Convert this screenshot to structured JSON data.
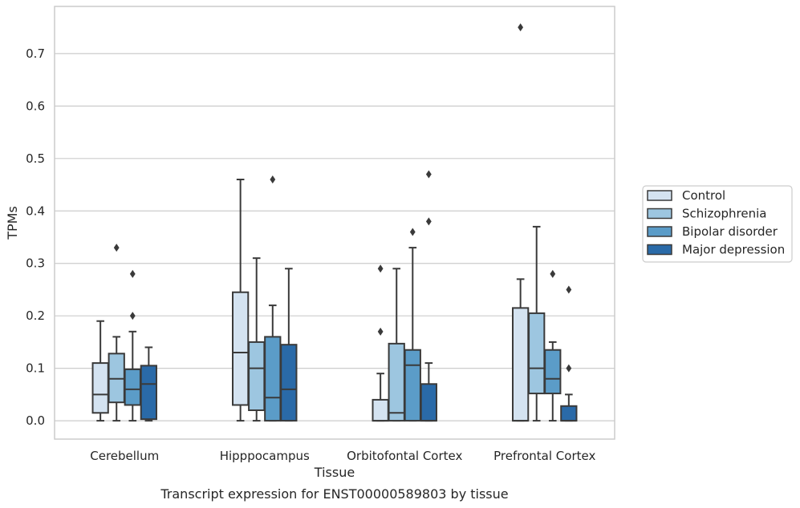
{
  "chart_data": {
    "type": "box",
    "xlabel": "Tissue",
    "ylabel": "TPMs",
    "caption": "Transcript expression for ENST00000589803 by tissue",
    "ylim": [
      -0.035,
      0.79
    ],
    "yticks": [
      0.0,
      0.1,
      0.2,
      0.3,
      0.4,
      0.5,
      0.6,
      0.7
    ],
    "ytick_labels": [
      "0.0",
      "0.1",
      "0.2",
      "0.3",
      "0.4",
      "0.5",
      "0.6",
      "0.7"
    ],
    "grid": "horizontal",
    "legend_position": "right",
    "categories": [
      "Cerebellum",
      "Hipppocampus",
      "Orbitofontal Cortex",
      "Prefrontal Cortex"
    ],
    "series": [
      {
        "name": "Control",
        "color": "#d4e3f1",
        "boxes": [
          {
            "whislo": 0.0,
            "q1": 0.015,
            "med": 0.05,
            "q3": 0.11,
            "whishi": 0.19,
            "fliers": []
          },
          {
            "whislo": 0.0,
            "q1": 0.03,
            "med": 0.13,
            "q3": 0.245,
            "whishi": 0.46,
            "fliers": []
          },
          {
            "whislo": 0.0,
            "q1": 0.0,
            "med": 0.0,
            "q3": 0.04,
            "whishi": 0.09,
            "fliers": [
              0.17,
              0.29
            ]
          },
          {
            "whislo": 0.0,
            "q1": 0.0,
            "med": 0.0,
            "q3": 0.215,
            "whishi": 0.27,
            "fliers": [
              0.75
            ]
          }
        ]
      },
      {
        "name": "Schizophrenia",
        "color": "#9dc6e0",
        "boxes": [
          {
            "whislo": 0.0,
            "q1": 0.035,
            "med": 0.08,
            "q3": 0.128,
            "whishi": 0.16,
            "fliers": [
              0.33
            ]
          },
          {
            "whislo": 0.0,
            "q1": 0.02,
            "med": 0.1,
            "q3": 0.15,
            "whishi": 0.31,
            "fliers": []
          },
          {
            "whislo": 0.0,
            "q1": 0.0,
            "med": 0.015,
            "q3": 0.147,
            "whishi": 0.29,
            "fliers": []
          },
          {
            "whislo": 0.0,
            "q1": 0.052,
            "med": 0.1,
            "q3": 0.205,
            "whishi": 0.37,
            "fliers": []
          }
        ]
      },
      {
        "name": "Bipolar disorder",
        "color": "#5b9cc8",
        "boxes": [
          {
            "whislo": 0.0,
            "q1": 0.03,
            "med": 0.06,
            "q3": 0.098,
            "whishi": 0.17,
            "fliers": [
              0.2,
              0.28
            ]
          },
          {
            "whislo": 0.0,
            "q1": 0.0,
            "med": 0.044,
            "q3": 0.16,
            "whishi": 0.22,
            "fliers": [
              0.46
            ]
          },
          {
            "whislo": 0.0,
            "q1": 0.0,
            "med": 0.106,
            "q3": 0.135,
            "whishi": 0.33,
            "fliers": [
              0.36
            ]
          },
          {
            "whislo": 0.0,
            "q1": 0.052,
            "med": 0.08,
            "q3": 0.135,
            "whishi": 0.15,
            "fliers": [
              0.28
            ]
          }
        ]
      },
      {
        "name": "Major depression",
        "color": "#2a6aa8",
        "boxes": [
          {
            "whislo": 0.0,
            "q1": 0.003,
            "med": 0.07,
            "q3": 0.105,
            "whishi": 0.14,
            "fliers": []
          },
          {
            "whislo": 0.0,
            "q1": 0.0,
            "med": 0.06,
            "q3": 0.145,
            "whishi": 0.29,
            "fliers": []
          },
          {
            "whislo": 0.0,
            "q1": 0.0,
            "med": 0.0,
            "q3": 0.07,
            "whishi": 0.11,
            "fliers": [
              0.38,
              0.47
            ]
          },
          {
            "whislo": 0.0,
            "q1": 0.0,
            "med": 0.0,
            "q3": 0.028,
            "whishi": 0.05,
            "fliers": [
              0.1,
              0.25
            ]
          }
        ]
      }
    ]
  }
}
